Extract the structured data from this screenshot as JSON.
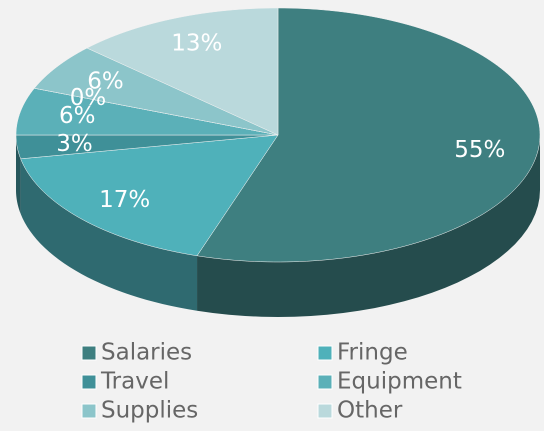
{
  "chart_data": {
    "type": "pie",
    "categories": [
      "Salaries",
      "Fringe",
      "Travel",
      "Equipment",
      null,
      "Supplies",
      "Other"
    ],
    "values": [
      55,
      17,
      3,
      6,
      0,
      6,
      13
    ],
    "value_labels": [
      "55%",
      "17%",
      "3%",
      "6%",
      "0%",
      "6%",
      "13%"
    ],
    "colors": [
      "#3e7f80",
      "#4fb1ba",
      "#3f9098",
      "#5bb0b8",
      "#74bcc3",
      "#8cc5ca",
      "#bad9dc"
    ],
    "legend": "bottom"
  }
}
